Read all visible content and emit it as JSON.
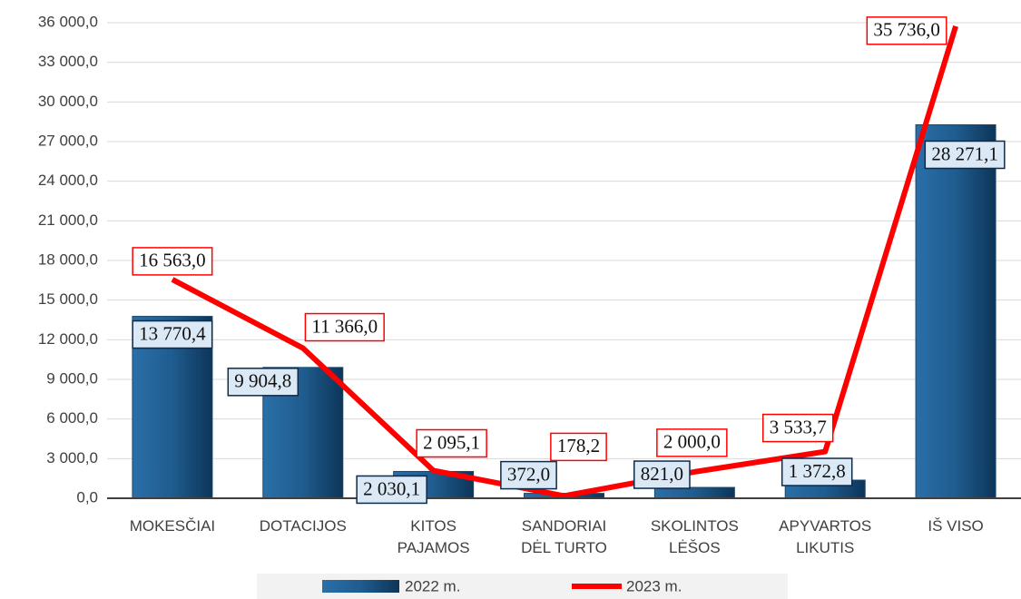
{
  "chart_data": {
    "type": "bar+line",
    "categories": [
      "MOKESČIAI",
      "DOTACIJOS",
      "KITOS\nPAJAMOS",
      "SANDORIAI\nDĖL TURTO",
      "SKOLINTOS\nLĖŠOS",
      "APYVARTOS\nLIKUTIS",
      "IŠ VISO"
    ],
    "series": [
      {
        "name": "2022 m.",
        "type": "bar",
        "color": "#1f5c8f",
        "values": [
          13770.4,
          9904.8,
          2030.1,
          372.0,
          821.0,
          1372.8,
          28271.1
        ],
        "value_labels": [
          "13 770,4",
          "9 904,8",
          "2 030,1",
          "372,0",
          "821,0",
          "1 372,8",
          "28 271,1"
        ]
      },
      {
        "name": "2023 m.",
        "type": "line",
        "color": "#ff0000",
        "values": [
          16563.0,
          11366.0,
          2095.1,
          178.2,
          2000.0,
          3533.7,
          35736.0
        ],
        "value_labels": [
          "16 563,0",
          "11 366,0",
          "2 095,1",
          "178,2",
          "2 000,0",
          "3 533,7",
          "35 736,0"
        ]
      }
    ],
    "ylim": [
      0,
      36000
    ],
    "yticks": [
      {
        "value": 0,
        "label": "0,0"
      },
      {
        "value": 3000,
        "label": "3 000,0"
      },
      {
        "value": 6000,
        "label": "6 000,0"
      },
      {
        "value": 9000,
        "label": "9 000,0"
      },
      {
        "value": 12000,
        "label": "12 000,0"
      },
      {
        "value": 15000,
        "label": "15 000,0"
      },
      {
        "value": 18000,
        "label": "18 000,0"
      },
      {
        "value": 21000,
        "label": "21 000,0"
      },
      {
        "value": 24000,
        "label": "24 000,0"
      },
      {
        "value": 27000,
        "label": "27 000,0"
      },
      {
        "value": 30000,
        "label": "30 000,0"
      },
      {
        "value": 33000,
        "label": "33 000,0"
      },
      {
        "value": 36000,
        "label": "36 000,0"
      }
    ],
    "grid": true,
    "legend": "bottom"
  }
}
